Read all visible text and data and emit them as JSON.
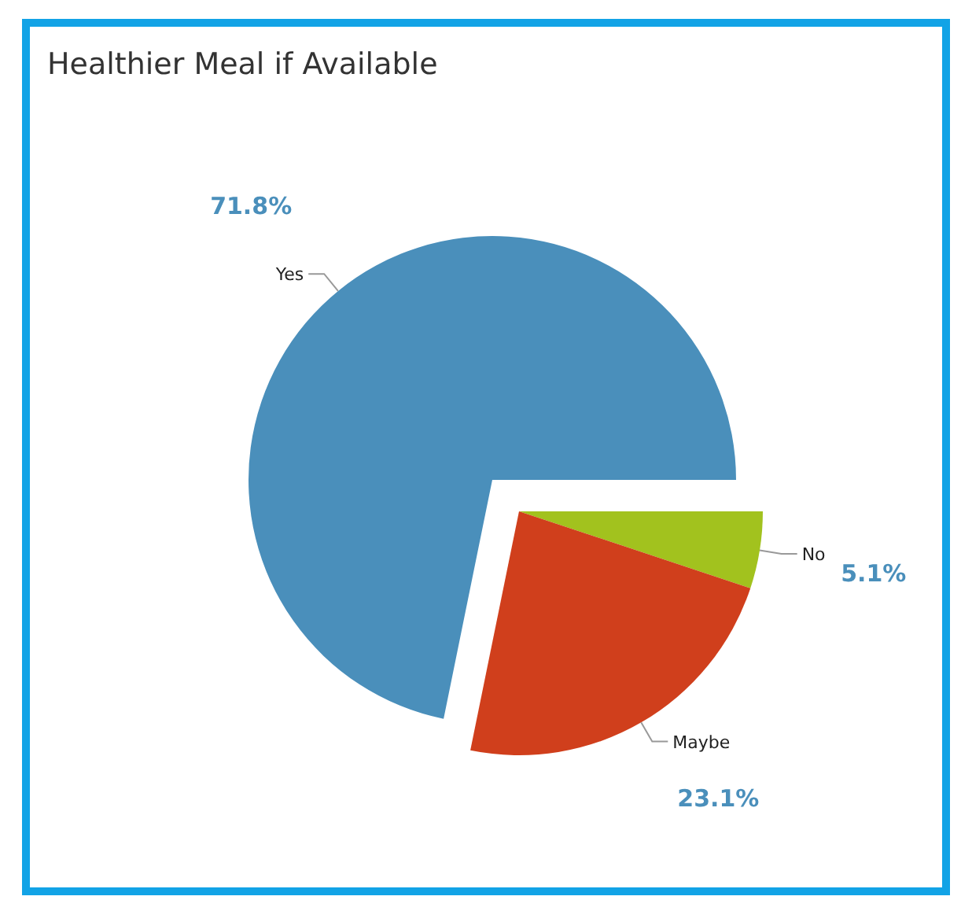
{
  "chart_data": {
    "type": "pie",
    "title": "Healthier Meal if Available",
    "categories": [
      "No",
      "Maybe",
      "Yes"
    ],
    "values": [
      5.1,
      23.1,
      71.8
    ],
    "colors": [
      "#a2c21e",
      "#d03f1c",
      "#4a8fbb"
    ],
    "value_labels": [
      "5.1%",
      "23.1%",
      "71.8%"
    ]
  }
}
